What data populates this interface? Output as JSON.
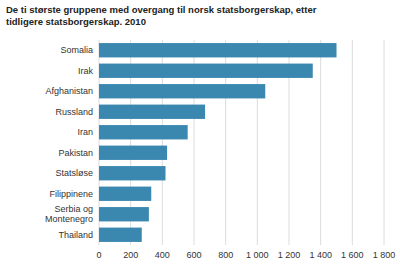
{
  "chart_data": {
    "type": "bar",
    "orientation": "horizontal",
    "title": "De ti største gruppene med overgang til norsk statsborgerskap, etter\ntidligere statsborgerskap. 2010",
    "categories": [
      "Thailand",
      "Serbia og\nMontenegro",
      "Filippinene",
      "Statsløse",
      "Pakistan",
      "Iran",
      "Russland",
      "Afghanistan",
      "Irak",
      "Somalia"
    ],
    "values": [
      270,
      315,
      330,
      420,
      430,
      560,
      670,
      1050,
      1350,
      1500
    ],
    "color": "#3a87b0",
    "xlim": [
      0,
      1800
    ],
    "xticks": [
      0,
      200,
      400,
      600,
      800,
      {
        "value": 1000,
        "label": "1 000"
      },
      {
        "value": 1200,
        "label": "1 200"
      },
      {
        "value": 1400,
        "label": "1 400"
      },
      {
        "value": 1600,
        "label": "1 600"
      },
      {
        "value": 1800,
        "label": "1 800"
      }
    ],
    "grid": true
  }
}
